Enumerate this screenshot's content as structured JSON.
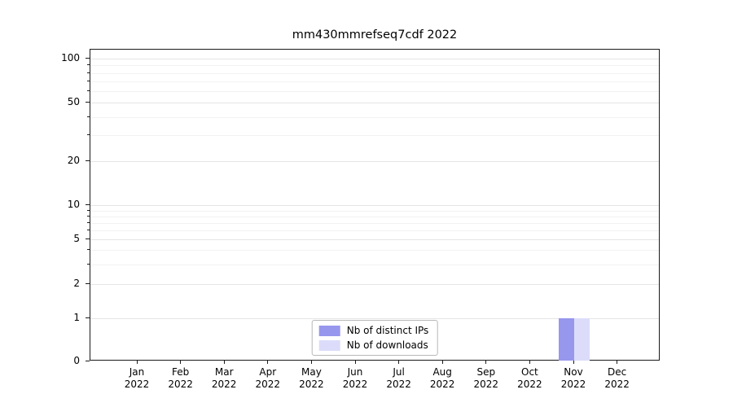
{
  "chart_data": {
    "type": "bar",
    "title": "mm430mmrefseq7cdf 2022",
    "categories": [
      "Jan",
      "Feb",
      "Mar",
      "Apr",
      "May",
      "Jun",
      "Jul",
      "Aug",
      "Sep",
      "Oct",
      "Nov",
      "Dec"
    ],
    "category_year": "2022",
    "series": [
      {
        "name": "Nb of distinct IPs",
        "color": "#9797ee",
        "values": [
          0,
          0,
          0,
          0,
          0,
          0,
          0,
          0,
          0,
          0,
          1,
          0
        ]
      },
      {
        "name": "Nb of downloads",
        "color": "#dcdcfa",
        "values": [
          0,
          0,
          0,
          0,
          0,
          0,
          0,
          0,
          0,
          0,
          1,
          0
        ]
      }
    ],
    "yscale": "symlog",
    "ylim": [
      0,
      115
    ],
    "y_ticks": [
      0,
      1,
      2,
      5,
      10,
      20,
      50,
      100
    ],
    "y_minor_ticks": [
      3,
      4,
      6,
      7,
      8,
      9,
      30,
      40,
      60,
      70,
      80,
      90
    ],
    "grid": "horizontal",
    "legend_position": "lower center",
    "colors": {
      "axis": "#1a1a1a",
      "major_grid": "#e5e5e5",
      "minor_grid": "#f2f2f2"
    }
  }
}
